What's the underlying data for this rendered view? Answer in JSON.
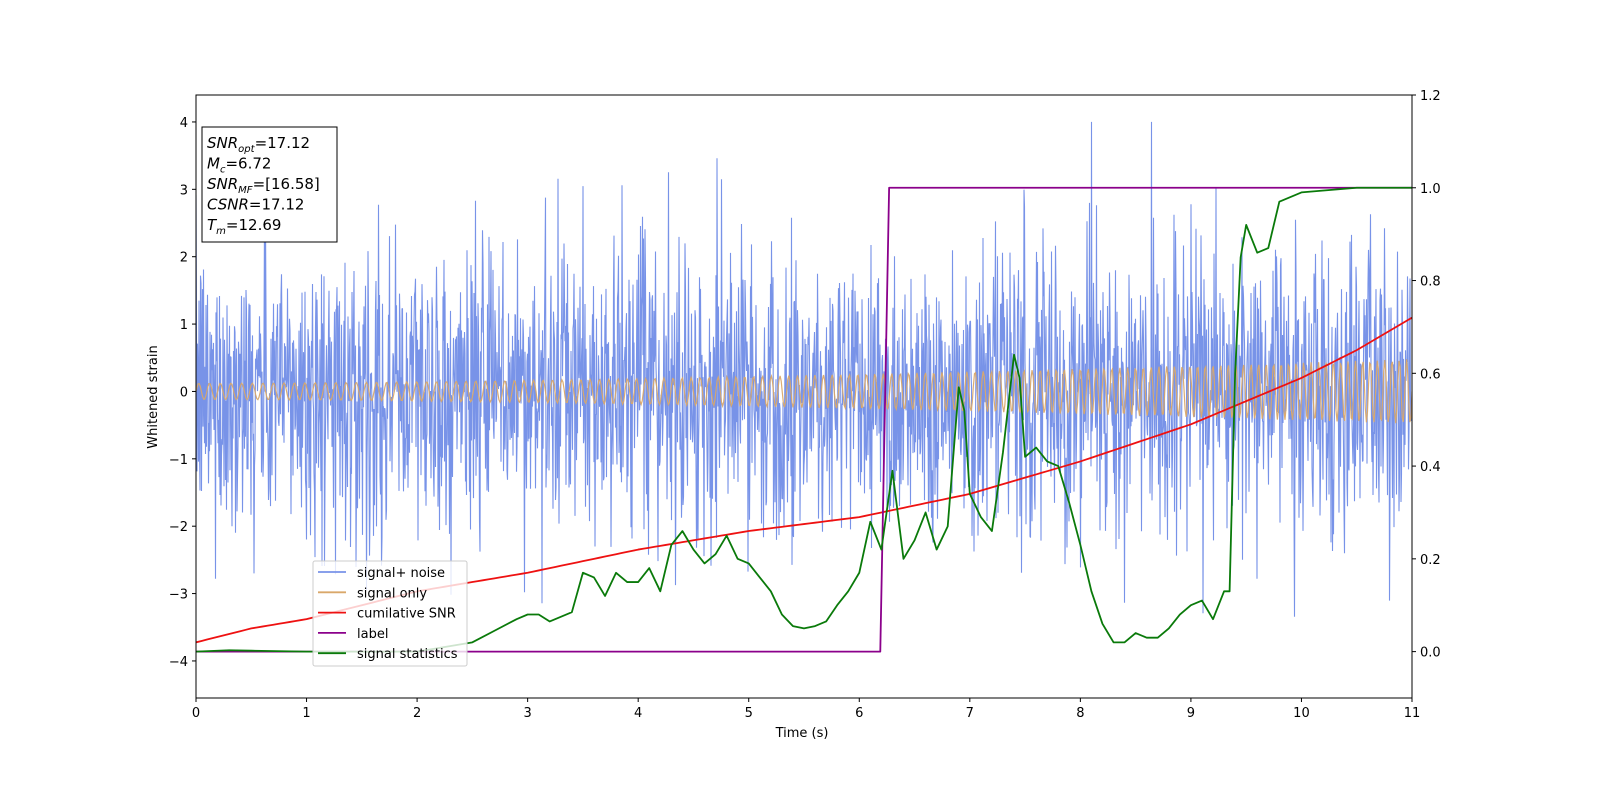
{
  "chart_data": {
    "type": "line",
    "xlabel": "Time (s)",
    "ylabel": "Whitened strain",
    "xlim": [
      0,
      11
    ],
    "ylim_left": [
      -4.55,
      4.4
    ],
    "ylim_right": [
      -0.1,
      1.2
    ],
    "x_ticks": [
      0,
      1,
      2,
      3,
      4,
      5,
      6,
      7,
      8,
      9,
      10,
      11
    ],
    "y_ticks_left": [
      -4,
      -3,
      -2,
      -1,
      0,
      1,
      2,
      3,
      4
    ],
    "y_ticks_right": [
      "0.0",
      "0.2",
      "0.4",
      "0.6",
      "0.8",
      "1.0",
      "1.2"
    ],
    "grid": false,
    "legend_position": "lower-left",
    "annotation": [
      {
        "sym": "SNR",
        "sub": "opt",
        "val": "=17.12"
      },
      {
        "sym": "M",
        "sub": "c",
        "val": "=6.72"
      },
      {
        "sym": "SNR",
        "sub": "MF",
        "val": "=[16.58]"
      },
      {
        "sym": "CSNR",
        "sub": "",
        "val": "=17.12"
      },
      {
        "sym": "T",
        "sub": "m",
        "val": "=12.69"
      }
    ],
    "series": [
      {
        "name": "signal+ noise",
        "axis": "left",
        "color": "#7893e8",
        "noise_std": 1.0,
        "peak_range": [
          -4.15,
          4.0
        ]
      },
      {
        "name": "signal only",
        "axis": "left",
        "color": "#d9a86a",
        "amplitude_start": 0.12,
        "amplitude_end": 0.48,
        "cycles": 140
      },
      {
        "name": "cumilative SNR",
        "axis": "right",
        "color": "#ee1111",
        "x": [
          0,
          0.5,
          1,
          2,
          3,
          4,
          5,
          6,
          7,
          8,
          9,
          9.5,
          10,
          10.5,
          11
        ],
        "y": [
          0.02,
          0.05,
          0.07,
          0.13,
          0.17,
          0.22,
          0.26,
          0.29,
          0.34,
          0.41,
          0.49,
          0.54,
          0.59,
          0.65,
          0.72
        ]
      },
      {
        "name": "label",
        "axis": "right",
        "color": "#8b008b",
        "x": [
          0,
          6.19,
          6.27,
          11
        ],
        "y": [
          0.0,
          0.0,
          1.0,
          1.0
        ]
      },
      {
        "name": "signal statistics",
        "axis": "right",
        "color": "#0a7a0a",
        "x": [
          0,
          0.3,
          0.5,
          1.0,
          2.0,
          2.5,
          2.7,
          2.9,
          3.0,
          3.1,
          3.2,
          3.3,
          3.4,
          3.5,
          3.6,
          3.7,
          3.8,
          3.9,
          4.0,
          4.1,
          4.2,
          4.3,
          4.4,
          4.5,
          4.6,
          4.7,
          4.8,
          4.9,
          5.0,
          5.1,
          5.2,
          5.3,
          5.4,
          5.5,
          5.6,
          5.7,
          5.8,
          5.9,
          6.0,
          6.1,
          6.2,
          6.3,
          6.4,
          6.5,
          6.6,
          6.7,
          6.8,
          6.9,
          6.95,
          7.0,
          7.1,
          7.2,
          7.3,
          7.4,
          7.45,
          7.5,
          7.6,
          7.7,
          7.8,
          7.9,
          8.0,
          8.1,
          8.2,
          8.3,
          8.4,
          8.5,
          8.6,
          8.7,
          8.8,
          8.9,
          9.0,
          9.1,
          9.2,
          9.3,
          9.35,
          9.4,
          9.45,
          9.5,
          9.6,
          9.7,
          9.8,
          9.9,
          10.0,
          10.5,
          11.0
        ],
        "y": [
          0.0,
          0.003,
          0.002,
          0.0,
          0.0,
          0.02,
          0.045,
          0.07,
          0.08,
          0.08,
          0.065,
          0.075,
          0.085,
          0.17,
          0.16,
          0.12,
          0.17,
          0.15,
          0.15,
          0.18,
          0.13,
          0.23,
          0.26,
          0.22,
          0.19,
          0.21,
          0.25,
          0.2,
          0.19,
          0.16,
          0.13,
          0.08,
          0.055,
          0.05,
          0.055,
          0.065,
          0.1,
          0.13,
          0.17,
          0.28,
          0.22,
          0.39,
          0.2,
          0.24,
          0.3,
          0.22,
          0.27,
          0.57,
          0.52,
          0.34,
          0.29,
          0.26,
          0.43,
          0.64,
          0.59,
          0.42,
          0.44,
          0.41,
          0.4,
          0.32,
          0.23,
          0.13,
          0.06,
          0.02,
          0.02,
          0.04,
          0.03,
          0.03,
          0.05,
          0.08,
          0.1,
          0.11,
          0.07,
          0.13,
          0.13,
          0.6,
          0.85,
          0.92,
          0.86,
          0.87,
          0.97,
          0.98,
          0.99,
          1.0,
          1.0
        ]
      }
    ]
  }
}
